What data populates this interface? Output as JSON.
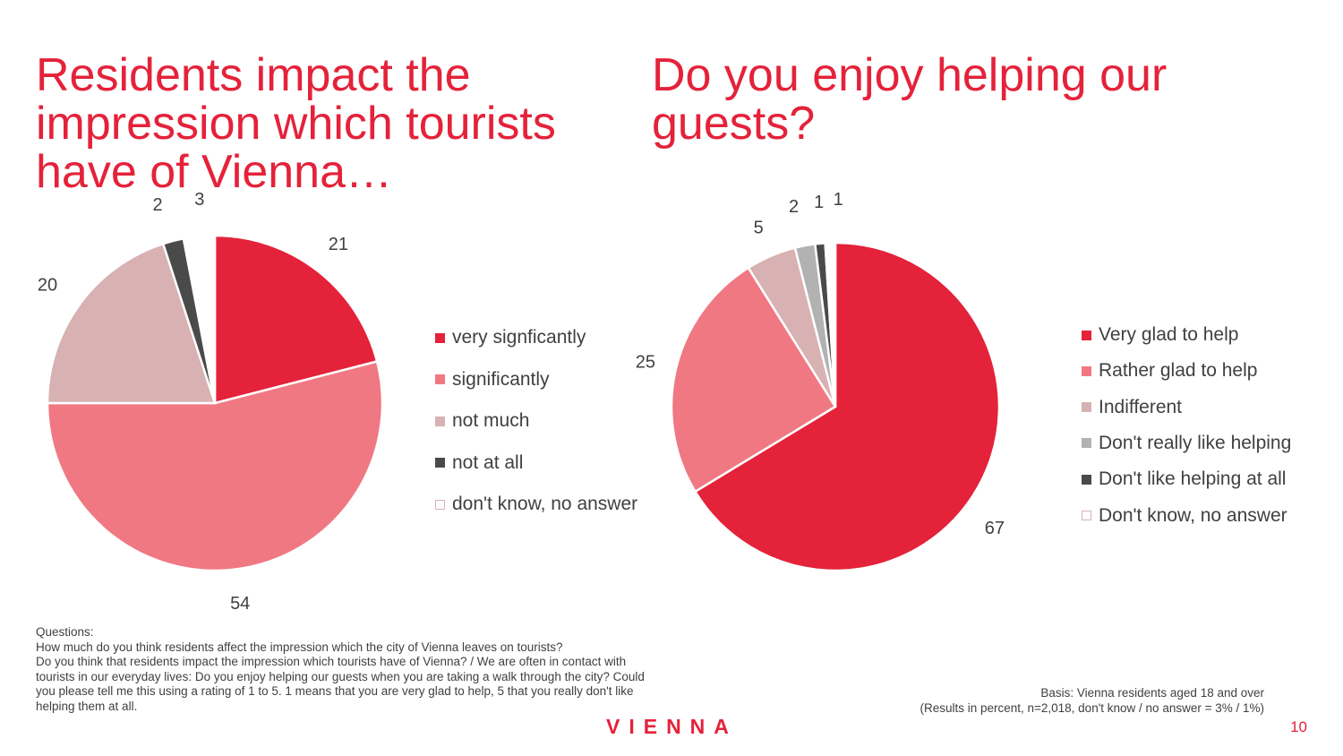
{
  "titles": {
    "left": "Residents impact the impression which tourists have of Vienna…",
    "right": "Do you enjoy helping our guests?"
  },
  "chart_data": [
    {
      "type": "pie",
      "title": "Residents impact the impression which tourists have of Vienna…",
      "categories": [
        "very signficantly",
        "significantly",
        "not much",
        "not at all",
        "don't know, no answer"
      ],
      "values": [
        21,
        54,
        20,
        2,
        3
      ],
      "colors": [
        "#e4223a",
        "#f07883",
        "#d8b1b3",
        "#4a4a4a",
        "#ffffff"
      ],
      "legend": "right"
    },
    {
      "type": "pie",
      "title": "Do you enjoy helping our guests?",
      "categories": [
        "Very glad to help",
        "Rather glad to help",
        "Indifferent",
        "Don't really like helping",
        "Don't like helping at all",
        "Don't know, no answer"
      ],
      "values": [
        67,
        25,
        5,
        2,
        1,
        1
      ],
      "colors": [
        "#e4223a",
        "#f07883",
        "#d8b1b3",
        "#b2b2b2",
        "#4a4a4a",
        "#ffffff"
      ],
      "legend": "right"
    }
  ],
  "notes": {
    "heading": "Questions:",
    "lines": [
      "How much do you think residents affect the impression which the city of Vienna leaves on tourists?",
      "Do you think that residents impact the impression which tourists have of Vienna? / We are often in contact with tourists in our everyday lives: Do you enjoy helping our guests when you are taking a walk through the city? Could you please tell me this using a rating of 1 to 5. 1 means that you are very glad to help, 5 that you really don't like helping them at all."
    ]
  },
  "basis": {
    "line1": "Basis: Vienna residents aged 18 and over",
    "line2": "(Results in percent, n=2,018, don't know / no answer = 3% / 1%)"
  },
  "logo_text": "VIENNA",
  "page_number": "10"
}
